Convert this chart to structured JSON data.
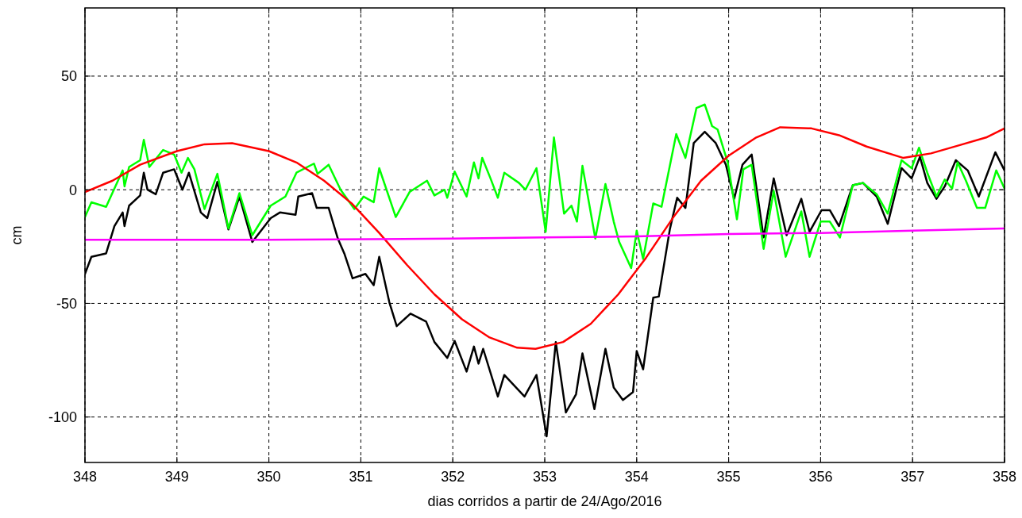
{
  "chart_data": {
    "type": "line",
    "xlabel": "dias corridos a partir de 24/Ago/2016",
    "ylabel": "cm",
    "xlim": [
      348,
      358
    ],
    "ylim": [
      -120,
      80
    ],
    "xticks": [
      348,
      349,
      350,
      351,
      352,
      353,
      354,
      355,
      356,
      357,
      358
    ],
    "yticks": [
      -100,
      -50,
      0,
      50
    ],
    "grid": true,
    "line_style": "solid",
    "series": [
      {
        "color": "#000000",
        "x": [
          348,
          348.07,
          348.23,
          348.32,
          348.41,
          348.43,
          348.48,
          348.6,
          348.64,
          348.68,
          348.77,
          348.85,
          348.97,
          349.06,
          349.13,
          349.26,
          349.33,
          349.44,
          349.56,
          349.68,
          349.82,
          350.02,
          350.12,
          350.29,
          350.32,
          350.47,
          350.52,
          350.65,
          350.75,
          350.82,
          350.91,
          351.05,
          351.14,
          351.2,
          351.31,
          351.39,
          351.54,
          351.71,
          351.8,
          351.94,
          352.02,
          352.15,
          352.23,
          352.28,
          352.33,
          352.49,
          352.56,
          352.78,
          352.91,
          353.02,
          353.12,
          353.23,
          353.34,
          353.41,
          353.54,
          353.66,
          353.75,
          353.85,
          353.96,
          354,
          354.07,
          354.18,
          354.24,
          354.36,
          354.44,
          354.53,
          354.62,
          354.74,
          354.86,
          354.97,
          355.06,
          355.15,
          355.25,
          355.38,
          355.49,
          355.63,
          355.79,
          355.88,
          356.01,
          356.1,
          356.2,
          356.35,
          356.46,
          356.61,
          356.73,
          356.88,
          356.99,
          357.08,
          357.16,
          357.26,
          357.35,
          357.47,
          357.6,
          357.72,
          357.9,
          358
        ],
        "values": [
          -37,
          -29.5,
          -28,
          -16,
          -10,
          -16,
          -7,
          -2.5,
          7.5,
          0,
          -2,
          7.5,
          9,
          0,
          7.5,
          -10,
          -12.5,
          3.5,
          -17.5,
          -3,
          -23,
          -12.5,
          -10,
          -11,
          -3,
          -1.5,
          -8,
          -8,
          -21.5,
          -28,
          -39,
          -37,
          -42,
          -29.5,
          -49.5,
          -60,
          -54.5,
          -58,
          -67,
          -74,
          -66.5,
          -80,
          -69,
          -76.5,
          -70,
          -91,
          -81.5,
          -91,
          -81.5,
          -108.5,
          -67,
          -98,
          -90,
          -72,
          -96.5,
          -70,
          -87,
          -92.5,
          -89,
          -71,
          -79,
          -47.5,
          -47,
          -17.5,
          -3.5,
          -8,
          20.5,
          25.5,
          20.5,
          11,
          -4,
          11,
          15.5,
          -21,
          5,
          -20,
          -4,
          -18.5,
          -9,
          -9,
          -16,
          2,
          3,
          -3,
          -15,
          9.5,
          5,
          14.5,
          3,
          -4,
          1.5,
          13,
          8.5,
          -3,
          16.5,
          8.5
        ]
      },
      {
        "color": "#00ff00",
        "x": [
          348,
          348.07,
          348.23,
          348.41,
          348.43,
          348.48,
          348.6,
          348.64,
          348.7,
          348.85,
          348.97,
          349.05,
          349.12,
          349.19,
          349.3,
          349.44,
          349.56,
          349.68,
          349.82,
          350.02,
          350.18,
          350.3,
          350.49,
          350.53,
          350.65,
          350.78,
          350.93,
          351.03,
          351.14,
          351.2,
          351.38,
          351.53,
          351.72,
          351.8,
          351.91,
          351.94,
          352.02,
          352.15,
          352.23,
          352.28,
          352.32,
          352.41,
          352.49,
          352.56,
          352.72,
          352.79,
          352.91,
          353.01,
          353.1,
          353.21,
          353.29,
          353.35,
          353.41,
          353.55,
          353.66,
          353.75,
          353.81,
          353.94,
          354,
          354.07,
          354.18,
          354.27,
          354.43,
          354.53,
          354.65,
          354.74,
          354.82,
          354.88,
          354.99,
          355.09,
          355.16,
          355.25,
          355.38,
          355.49,
          355.62,
          355.79,
          355.88,
          356,
          356.1,
          356.21,
          356.35,
          356.46,
          356.61,
          356.73,
          356.88,
          356.99,
          357.07,
          357.16,
          357.26,
          357.35,
          357.43,
          357.49,
          357.58,
          357.7,
          357.79,
          357.91,
          358
        ],
        "values": [
          -12,
          -5.5,
          -7.5,
          8.5,
          1.5,
          10,
          13,
          22,
          10,
          17.5,
          15.5,
          7.5,
          14,
          9,
          -8.5,
          7,
          -17,
          -1.5,
          -20,
          -7,
          -3,
          7.5,
          11.5,
          7,
          11,
          0,
          -8.5,
          -3,
          -5.5,
          9.5,
          -12,
          -1,
          4,
          -2.5,
          0,
          -3.5,
          8,
          -3,
          12,
          5,
          14,
          5,
          -3.5,
          7.5,
          3,
          0,
          9.5,
          -18.5,
          23,
          -10.5,
          -7,
          -14,
          10.5,
          -21.5,
          2.5,
          -14,
          -23,
          -34.5,
          -18,
          -30.5,
          -6,
          -7.5,
          24.5,
          14,
          36,
          37.5,
          28,
          26.5,
          12,
          -13,
          9,
          11,
          -26,
          -0.5,
          -29.5,
          -9.5,
          -29.5,
          -14,
          -14,
          -21,
          2,
          3,
          -2,
          -10.5,
          13,
          9.5,
          18.5,
          7.5,
          -3,
          4.5,
          0.5,
          12,
          4,
          -8,
          -8,
          8.5,
          0.5
        ]
      },
      {
        "color": "#ff0000",
        "x": [
          348,
          348.3,
          348.6,
          349,
          349.3,
          349.6,
          350,
          350.3,
          350.6,
          350.9,
          351.2,
          351.5,
          351.8,
          352.1,
          352.4,
          352.7,
          352.9,
          353.2,
          353.5,
          353.8,
          354.1,
          354.4,
          354.7,
          355,
          355.3,
          355.56,
          355.9,
          356.2,
          356.5,
          356.9,
          357.2,
          357.5,
          357.8,
          358
        ],
        "values": [
          -1,
          4,
          11,
          17,
          20,
          20.5,
          17,
          12,
          4,
          -6,
          -19,
          -33,
          -46,
          -57,
          -65,
          -69.5,
          -70,
          -67,
          -59,
          -46,
          -30,
          -12,
          4,
          15,
          23,
          27.5,
          27,
          24,
          19,
          14,
          16,
          19.5,
          23,
          27
        ]
      },
      {
        "color": "#ff00ff",
        "x": [
          348,
          350,
          352,
          353,
          354,
          355,
          356,
          357,
          358
        ],
        "values": [
          -22,
          -22,
          -21.5,
          -21,
          -20.5,
          -19.5,
          -19,
          -18,
          -17
        ]
      }
    ]
  }
}
